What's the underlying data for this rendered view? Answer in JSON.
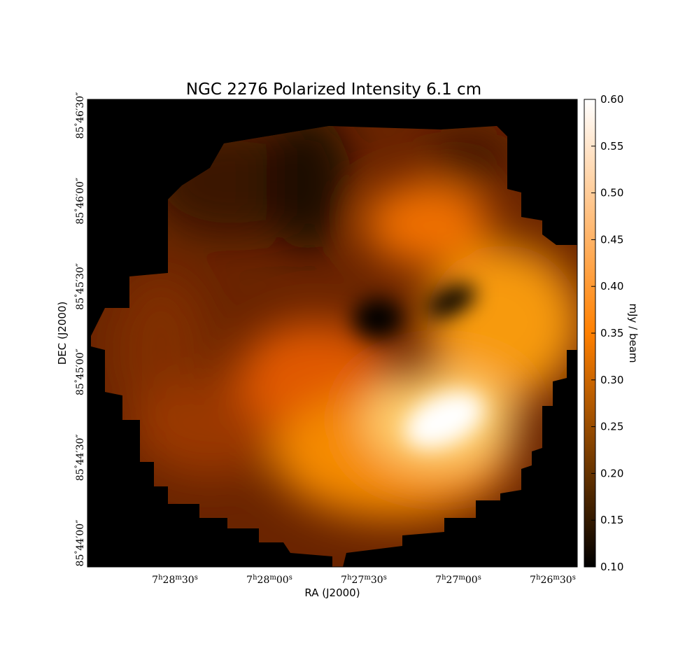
{
  "chart_data": {
    "type": "image",
    "title": "NGC 2276 Polarized Intensity 6.1 cm",
    "xlabel": "RA (J2000)",
    "ylabel": "DEC (J2000)",
    "xticks": [
      "7h28m30s",
      "7h28m00s",
      "7h27m30s",
      "7h27m00s",
      "7h26m30s"
    ],
    "yticks": [
      "85°44′00″",
      "85°44′30″",
      "85°45′00″",
      "85°45′30″",
      "85°46′00″",
      "85°46′30″"
    ],
    "colorbar": {
      "label": "mJy / beam",
      "lim": [
        0.1,
        0.6
      ],
      "colors": [
        "#000000",
        "#ff8000",
        "#ffffff"
      ],
      "ticks": [
        {
          "value": 0.1,
          "label": "0.10"
        },
        {
          "value": 0.15,
          "label": "0.15"
        },
        {
          "value": 0.2,
          "label": "0.20"
        },
        {
          "value": 0.25,
          "label": "0.25"
        },
        {
          "value": 0.3,
          "label": "0.30"
        },
        {
          "value": 0.35,
          "label": "0.35"
        },
        {
          "value": 0.4,
          "label": "0.40"
        },
        {
          "value": 0.45,
          "label": "0.45"
        },
        {
          "value": 0.5,
          "label": "0.50"
        },
        {
          "value": 0.55,
          "label": "0.55"
        },
        {
          "value": 0.6,
          "label": "0.60"
        }
      ]
    }
  }
}
